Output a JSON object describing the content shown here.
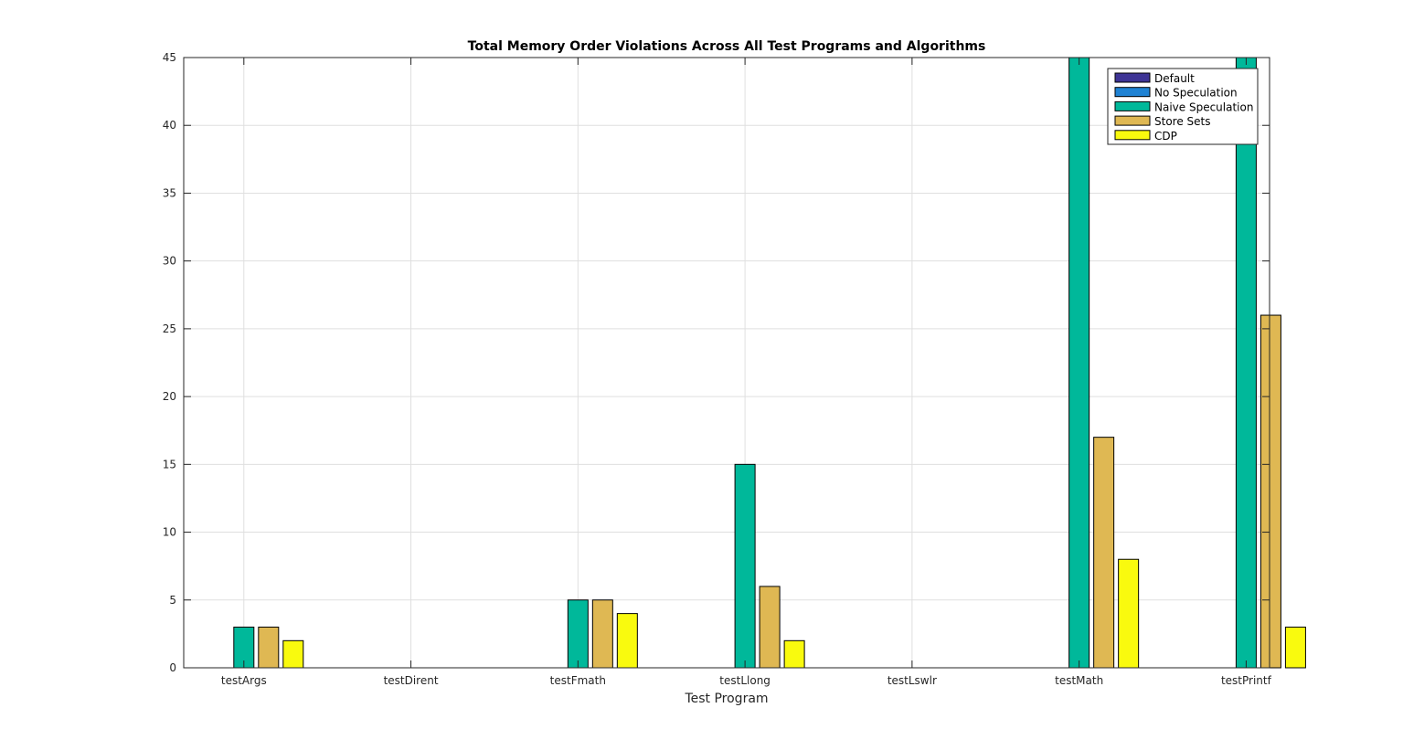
{
  "chart_data": {
    "type": "bar",
    "title": "Total Memory Order Violations Across All Test Programs and Algorithms",
    "xlabel": "Test Program",
    "ylabel": "",
    "ylim": [
      0,
      45
    ],
    "yticks": [
      0,
      5,
      10,
      15,
      20,
      25,
      30,
      35,
      40,
      45
    ],
    "grid": true,
    "legend_position": "top-right",
    "categories": [
      "testArgs",
      "testDirent",
      "testFmath",
      "testLlong",
      "testLswlr",
      "testMath",
      "testPrintf"
    ],
    "series": [
      {
        "name": "Default",
        "color": "#3e3495",
        "values": [
          0,
          0,
          0,
          0,
          0,
          0,
          0
        ]
      },
      {
        "name": "No Speculation",
        "color": "#1f82d3",
        "values": [
          0,
          0,
          0,
          0,
          0,
          0,
          0
        ]
      },
      {
        "name": "Naive Speculation",
        "color": "#00b89a",
        "values": [
          3,
          0,
          5,
          15,
          0,
          45,
          45
        ]
      },
      {
        "name": "Store Sets",
        "color": "#dfb853",
        "values": [
          3,
          0,
          5,
          6,
          0,
          17,
          26
        ]
      },
      {
        "name": "CDP",
        "color": "#f9fa0e",
        "values": [
          2,
          0,
          4,
          2,
          0,
          8,
          3
        ]
      }
    ]
  }
}
